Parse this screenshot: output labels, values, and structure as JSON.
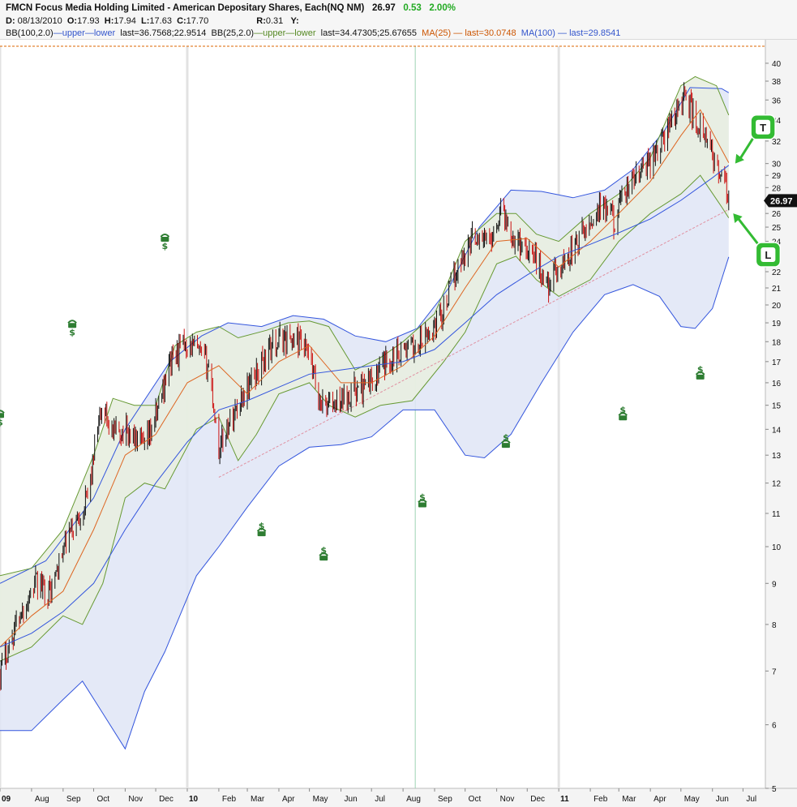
{
  "header": {
    "title": "FMCN Focus Media Holding Limited - American Depositary Shares, Each(NQ NM)",
    "last_price": "26.97",
    "change": "0.53",
    "change_pct": "2.00%",
    "d_label": "D:",
    "date": "08/13/2010",
    "o_label": "O:",
    "open": "17.93",
    "h_label": "H:",
    "high": "17.94",
    "l_label": "L:",
    "low": "17.63",
    "c_label": "C:",
    "close": "17.70",
    "r_label": "R:",
    "r_value": "0.31",
    "y_label": "Y:",
    "bb100_label": "BB(100,2.0)",
    "bb_upper": "upper",
    "bb_lower": "lower",
    "bb100_last": "last=36.7568;22.9514",
    "bb25_label": "BB(25,2.0)",
    "bb25_last": "last=34.47305;25.67655",
    "ma25_label": "MA(25)",
    "ma25_last": "last=30.0748",
    "ma100_label": "MA(100)",
    "ma100_last": "last=29.8541"
  },
  "colors": {
    "background": "#ffffff",
    "candle_up": "#111111",
    "candle_down": "#cc1111",
    "bb100": "#3355dd",
    "bb100_fill": "#dfe5f6",
    "bb25": "#669933",
    "bb25_fill": "#e8eee0",
    "ma25": "#dd6622",
    "ma100": "#3355dd",
    "resistance": "#dd6600",
    "trendline": "#e090a0",
    "marker_green": "#33bb33",
    "price_tag": "#111111",
    "icon": "#2e7d32"
  },
  "chart_data": {
    "type": "candlestick",
    "ticker": "FMCN",
    "scale": "log",
    "ylim": [
      5,
      42
    ],
    "y_ticks": [
      5,
      6,
      7,
      8,
      9,
      10,
      11,
      12,
      13,
      14,
      15,
      16,
      17,
      18,
      19,
      20,
      21,
      22,
      23,
      24,
      25,
      26,
      28,
      29,
      30,
      32,
      34,
      36,
      38,
      40
    ],
    "x_ticks": [
      {
        "label": "09",
        "date": "2009-07-01",
        "major": true
      },
      {
        "label": "Aug",
        "date": "2009-08-01",
        "major": false
      },
      {
        "label": "Sep",
        "date": "2009-09-01",
        "major": false
      },
      {
        "label": "Oct",
        "date": "2009-10-01",
        "major": false
      },
      {
        "label": "Nov",
        "date": "2009-11-01",
        "major": false
      },
      {
        "label": "Dec",
        "date": "2009-12-01",
        "major": false
      },
      {
        "label": "10",
        "date": "2010-01-01",
        "major": true
      },
      {
        "label": "Feb",
        "date": "2010-02-01",
        "major": false
      },
      {
        "label": "Mar",
        "date": "2010-03-01",
        "major": false
      },
      {
        "label": "Apr",
        "date": "2010-04-01",
        "major": false
      },
      {
        "label": "May",
        "date": "2010-05-01",
        "major": false
      },
      {
        "label": "Jun",
        "date": "2010-06-01",
        "major": false
      },
      {
        "label": "Jul",
        "date": "2010-07-01",
        "major": false
      },
      {
        "label": "Aug",
        "date": "2010-08-01",
        "major": false
      },
      {
        "label": "Sep",
        "date": "2010-09-01",
        "major": false
      },
      {
        "label": "Oct",
        "date": "2010-10-01",
        "major": false
      },
      {
        "label": "Nov",
        "date": "2010-11-01",
        "major": false
      },
      {
        "label": "Dec",
        "date": "2010-12-01",
        "major": false
      },
      {
        "label": "11",
        "date": "2011-01-01",
        "major": true
      },
      {
        "label": "Feb",
        "date": "2011-02-01",
        "major": false
      },
      {
        "label": "Mar",
        "date": "2011-03-01",
        "major": false
      },
      {
        "label": "Apr",
        "date": "2011-04-01",
        "major": false
      },
      {
        "label": "May",
        "date": "2011-05-01",
        "major": false
      },
      {
        "label": "Jun",
        "date": "2011-06-01",
        "major": false
      },
      {
        "label": "Jul",
        "date": "2011-07-01",
        "major": false
      }
    ],
    "x_range": [
      "2009-07-01",
      "2011-07-23"
    ],
    "price_path": [
      [
        "2009-07-01",
        7.0
      ],
      [
        "2009-07-20",
        8.2
      ],
      [
        "2009-08-05",
        9.0
      ],
      [
        "2009-08-20",
        8.8
      ],
      [
        "2009-09-05",
        10.2
      ],
      [
        "2009-09-25",
        11.5
      ],
      [
        "2009-10-10",
        15.0
      ],
      [
        "2009-10-20",
        13.8
      ],
      [
        "2009-11-01",
        14.0
      ],
      [
        "2009-11-20",
        13.2
      ],
      [
        "2009-12-01",
        14.5
      ],
      [
        "2009-12-15",
        17.0
      ],
      [
        "2009-12-31",
        18.0
      ],
      [
        "2010-01-10",
        17.5
      ],
      [
        "2010-01-22",
        16.8
      ],
      [
        "2010-02-01",
        13.2
      ],
      [
        "2010-02-10",
        14.2
      ],
      [
        "2010-02-25",
        15.5
      ],
      [
        "2010-03-10",
        16.5
      ],
      [
        "2010-03-25",
        17.8
      ],
      [
        "2010-04-05",
        18.2
      ],
      [
        "2010-04-20",
        18.0
      ],
      [
        "2010-05-01",
        17.2
      ],
      [
        "2010-05-10",
        15.2
      ],
      [
        "2010-05-25",
        15.0
      ],
      [
        "2010-06-10",
        15.6
      ],
      [
        "2010-06-25",
        15.8
      ],
      [
        "2010-07-10",
        16.6
      ],
      [
        "2010-07-25",
        17.5
      ],
      [
        "2010-08-13",
        17.7
      ],
      [
        "2010-08-25",
        18.2
      ],
      [
        "2010-09-10",
        19.8
      ],
      [
        "2010-09-25",
        22.5
      ],
      [
        "2010-10-10",
        24.5
      ],
      [
        "2010-10-25",
        24.0
      ],
      [
        "2010-11-05",
        26.3
      ],
      [
        "2010-11-20",
        24.0
      ],
      [
        "2010-12-05",
        23.5
      ],
      [
        "2010-12-20",
        21.2
      ],
      [
        "2011-01-05",
        22.5
      ],
      [
        "2011-01-25",
        24.5
      ],
      [
        "2011-02-10",
        26.5
      ],
      [
        "2011-02-25",
        25.5
      ],
      [
        "2011-03-10",
        28.0
      ],
      [
        "2011-03-25",
        29.5
      ],
      [
        "2011-04-10",
        31.5
      ],
      [
        "2011-04-25",
        34.5
      ],
      [
        "2011-05-05",
        36.5
      ],
      [
        "2011-05-15",
        34.0
      ],
      [
        "2011-05-25",
        32.0
      ],
      [
        "2011-06-05",
        30.0
      ],
      [
        "2011-06-15",
        27.5
      ],
      [
        "2011-06-17",
        26.97
      ]
    ],
    "bb100_upper": [
      [
        "2009-07-01",
        9.0
      ],
      [
        "2009-08-15",
        9.6
      ],
      [
        "2009-10-01",
        11.5
      ],
      [
        "2009-11-01",
        14.0
      ],
      [
        "2009-12-15",
        17.0
      ],
      [
        "2010-01-15",
        18.3
      ],
      [
        "2010-02-10",
        19.0
      ],
      [
        "2010-03-15",
        18.8
      ],
      [
        "2010-04-15",
        19.4
      ],
      [
        "2010-05-15",
        19.2
      ],
      [
        "2010-06-15",
        18.3
      ],
      [
        "2010-07-15",
        18.0
      ],
      [
        "2010-08-15",
        18.7
      ],
      [
        "2010-09-15",
        21.0
      ],
      [
        "2010-10-15",
        25.0
      ],
      [
        "2010-11-15",
        27.8
      ],
      [
        "2010-12-15",
        27.7
      ],
      [
        "2011-01-15",
        27.2
      ],
      [
        "2011-02-15",
        27.8
      ],
      [
        "2011-03-15",
        29.5
      ],
      [
        "2011-04-15",
        33.0
      ],
      [
        "2011-05-10",
        37.3
      ],
      [
        "2011-06-10",
        37.2
      ],
      [
        "2011-06-17",
        36.7568
      ]
    ],
    "bb100_lower": [
      [
        "2009-07-01",
        5.9
      ],
      [
        "2009-08-01",
        5.9
      ],
      [
        "2009-09-01",
        6.45
      ],
      [
        "2009-09-20",
        6.8
      ],
      [
        "2009-10-10",
        6.2
      ],
      [
        "2009-11-01",
        5.6
      ],
      [
        "2009-11-20",
        6.6
      ],
      [
        "2009-12-10",
        7.4
      ],
      [
        "2010-01-10",
        9.2
      ],
      [
        "2010-02-01",
        10.0
      ],
      [
        "2010-03-01",
        11.2
      ],
      [
        "2010-04-01",
        12.6
      ],
      [
        "2010-05-01",
        13.3
      ],
      [
        "2010-06-01",
        13.4
      ],
      [
        "2010-07-01",
        13.7
      ],
      [
        "2010-08-01",
        14.8
      ],
      [
        "2010-09-01",
        14.8
      ],
      [
        "2010-10-01",
        13.0
      ],
      [
        "2010-10-20",
        12.9
      ],
      [
        "2010-11-15",
        13.8
      ],
      [
        "2010-12-15",
        16.0
      ],
      [
        "2011-01-15",
        18.5
      ],
      [
        "2011-02-15",
        20.6
      ],
      [
        "2011-03-15",
        21.2
      ],
      [
        "2011-04-10",
        20.5
      ],
      [
        "2011-05-01",
        18.8
      ],
      [
        "2011-05-15",
        18.7
      ],
      [
        "2011-06-01",
        19.8
      ],
      [
        "2011-06-17",
        22.9514
      ]
    ],
    "bb25_upper": [
      [
        "2009-07-01",
        9.2
      ],
      [
        "2009-08-01",
        9.4
      ],
      [
        "2009-09-01",
        10.5
      ],
      [
        "2009-10-01",
        13.0
      ],
      [
        "2009-10-20",
        15.3
      ],
      [
        "2009-11-10",
        15.0
      ],
      [
        "2009-12-01",
        15.0
      ],
      [
        "2009-12-20",
        17.8
      ],
      [
        "2010-01-10",
        18.5
      ],
      [
        "2010-02-01",
        18.8
      ],
      [
        "2010-02-20",
        18.2
      ],
      [
        "2010-03-20",
        18.6
      ],
      [
        "2010-04-10",
        19.0
      ],
      [
        "2010-05-01",
        19.1
      ],
      [
        "2010-05-20",
        18.8
      ],
      [
        "2010-06-15",
        16.6
      ],
      [
        "2010-07-10",
        17.2
      ],
      [
        "2010-08-01",
        18.0
      ],
      [
        "2010-09-01",
        19.5
      ],
      [
        "2010-10-01",
        24.0
      ],
      [
        "2010-11-01",
        26.0
      ],
      [
        "2010-11-20",
        26.0
      ],
      [
        "2010-12-10",
        24.5
      ],
      [
        "2011-01-01",
        24.0
      ],
      [
        "2011-02-01",
        26.0
      ],
      [
        "2011-03-01",
        27.5
      ],
      [
        "2011-04-01",
        30.5
      ],
      [
        "2011-05-01",
        37.5
      ],
      [
        "2011-05-15",
        38.5
      ],
      [
        "2011-06-05",
        37.5
      ],
      [
        "2011-06-17",
        34.47305
      ]
    ],
    "bb25_lower": [
      [
        "2009-07-01",
        7.2
      ],
      [
        "2009-08-01",
        7.5
      ],
      [
        "2009-09-01",
        8.2
      ],
      [
        "2009-09-20",
        8.0
      ],
      [
        "2009-10-10",
        9.0
      ],
      [
        "2009-11-01",
        11.5
      ],
      [
        "2009-11-20",
        12.0
      ],
      [
        "2009-12-10",
        11.8
      ],
      [
        "2010-01-10",
        14.0
      ],
      [
        "2010-02-01",
        14.5
      ],
      [
        "2010-02-20",
        12.8
      ],
      [
        "2010-03-10",
        13.8
      ],
      [
        "2010-04-01",
        15.5
      ],
      [
        "2010-05-01",
        16.0
      ],
      [
        "2010-05-20",
        15.0
      ],
      [
        "2010-06-15",
        14.5
      ],
      [
        "2010-07-10",
        15.0
      ],
      [
        "2010-08-10",
        15.2
      ],
      [
        "2010-09-10",
        17.0
      ],
      [
        "2010-10-01",
        18.5
      ],
      [
        "2010-11-01",
        22.5
      ],
      [
        "2010-11-20",
        23.0
      ],
      [
        "2010-12-10",
        21.5
      ],
      [
        "2011-01-01",
        20.5
      ],
      [
        "2011-02-01",
        21.5
      ],
      [
        "2011-03-01",
        24.0
      ],
      [
        "2011-04-01",
        26.0
      ],
      [
        "2011-05-01",
        27.5
      ],
      [
        "2011-05-20",
        29.0
      ],
      [
        "2011-06-10",
        26.5
      ],
      [
        "2011-06-17",
        25.67655
      ]
    ],
    "ma25": [
      [
        "2009-07-01",
        7.5
      ],
      [
        "2009-08-01",
        8.2
      ],
      [
        "2009-09-01",
        8.8
      ],
      [
        "2009-10-01",
        10.5
      ],
      [
        "2009-11-01",
        13.0
      ],
      [
        "2009-12-01",
        13.8
      ],
      [
        "2010-01-01",
        16.0
      ],
      [
        "2010-02-01",
        16.8
      ],
      [
        "2010-03-01",
        15.5
      ],
      [
        "2010-04-01",
        17.0
      ],
      [
        "2010-05-01",
        17.8
      ],
      [
        "2010-06-01",
        16.0
      ],
      [
        "2010-07-01",
        16.0
      ],
      [
        "2010-08-01",
        16.8
      ],
      [
        "2010-09-01",
        18.3
      ],
      [
        "2010-10-01",
        21.0
      ],
      [
        "2010-11-01",
        24.0
      ],
      [
        "2010-12-01",
        24.2
      ],
      [
        "2011-01-01",
        22.3
      ],
      [
        "2011-02-01",
        24.0
      ],
      [
        "2011-03-01",
        26.0
      ],
      [
        "2011-04-01",
        28.5
      ],
      [
        "2011-05-01",
        32.5
      ],
      [
        "2011-05-20",
        35.0
      ],
      [
        "2011-06-17",
        30.0748
      ]
    ],
    "ma100": [
      [
        "2009-07-01",
        7.5
      ],
      [
        "2009-08-01",
        7.8
      ],
      [
        "2009-09-01",
        8.3
      ],
      [
        "2009-10-01",
        9.0
      ],
      [
        "2009-11-01",
        10.5
      ],
      [
        "2009-12-01",
        12.0
      ],
      [
        "2010-01-01",
        13.5
      ],
      [
        "2010-02-01",
        14.8
      ],
      [
        "2010-03-01",
        15.2
      ],
      [
        "2010-04-01",
        15.8
      ],
      [
        "2010-05-01",
        16.4
      ],
      [
        "2010-06-01",
        16.6
      ],
      [
        "2010-07-01",
        16.8
      ],
      [
        "2010-08-01",
        17.0
      ],
      [
        "2010-09-01",
        17.6
      ],
      [
        "2010-10-01",
        19.0
      ],
      [
        "2010-11-01",
        20.6
      ],
      [
        "2010-12-01",
        21.8
      ],
      [
        "2011-01-01",
        23.0
      ],
      [
        "2011-02-01",
        23.8
      ],
      [
        "2011-03-01",
        24.6
      ],
      [
        "2011-04-01",
        25.6
      ],
      [
        "2011-05-01",
        27.0
      ],
      [
        "2011-06-01",
        28.8
      ],
      [
        "2011-06-17",
        29.8541
      ]
    ],
    "resistance_line": 42.0,
    "trend_line": [
      [
        "2010-02-01",
        12.2
      ],
      [
        "2011-06-17",
        26.3
      ]
    ],
    "highlight_date": "2010-08-13",
    "event_icons": [
      {
        "date": "2009-07-01",
        "price": 14.6,
        "dollar_above": false
      },
      {
        "date": "2009-09-10",
        "price": 18.9,
        "dollar_above": false
      },
      {
        "date": "2009-12-10",
        "price": 24.2,
        "dollar_above": false
      },
      {
        "date": "2010-03-15",
        "price": 10.4,
        "dollar_above": true
      },
      {
        "date": "2010-05-15",
        "price": 9.7,
        "dollar_above": true
      },
      {
        "date": "2010-08-20",
        "price": 11.3,
        "dollar_above": true
      },
      {
        "date": "2010-11-10",
        "price": 13.4,
        "dollar_above": true
      },
      {
        "date": "2011-03-05",
        "price": 14.5,
        "dollar_above": true
      },
      {
        "date": "2011-05-20",
        "price": 16.3,
        "dollar_above": true
      }
    ],
    "annotations": [
      {
        "label": "T",
        "date": "2011-06-22",
        "price": 33.3,
        "arrow_to": [
          "2011-06-17",
          30.0
        ]
      },
      {
        "label": "L",
        "date": "2011-06-27",
        "price": 23.1,
        "arrow_to": [
          "2011-06-15",
          26.0
        ]
      }
    ],
    "last_price_tag": 26.97,
    "last_date": "2011-06-17"
  }
}
